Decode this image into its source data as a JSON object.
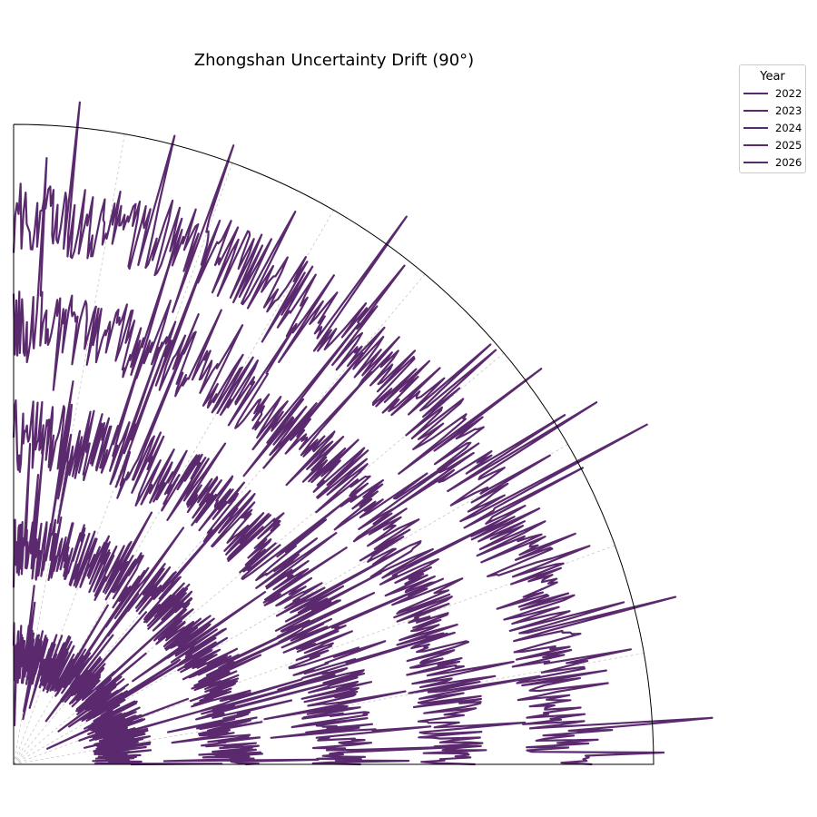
{
  "chart_data": {
    "type": "line",
    "projection": "polar",
    "angular_extent_deg": 90,
    "title": "Zhongshan Uncertainty Drift (90°)",
    "legend": {
      "title": "Year",
      "placement": "top-right outside"
    },
    "radial_ticks_shown": false,
    "angular_ticks_shown": false,
    "grid": true,
    "theta_range_deg": [
      0,
      90
    ],
    "r_range": [
      0,
      5.85
    ],
    "series": [
      {
        "name": "2022",
        "color": "#5b2a6e",
        "base_r": 1.0,
        "noise_amp": 0.5
      },
      {
        "name": "2023",
        "color": "#5b2a6e",
        "base_r": 2.0,
        "noise_amp": 0.55
      },
      {
        "name": "2024",
        "color": "#5b2a6e",
        "base_r": 3.0,
        "noise_amp": 0.6
      },
      {
        "name": "2025",
        "color": "#5b2a6e",
        "base_r": 4.0,
        "noise_amp": 0.6
      },
      {
        "name": "2026",
        "color": "#5b2a6e",
        "base_r": 5.0,
        "noise_amp": 0.65
      }
    ]
  }
}
